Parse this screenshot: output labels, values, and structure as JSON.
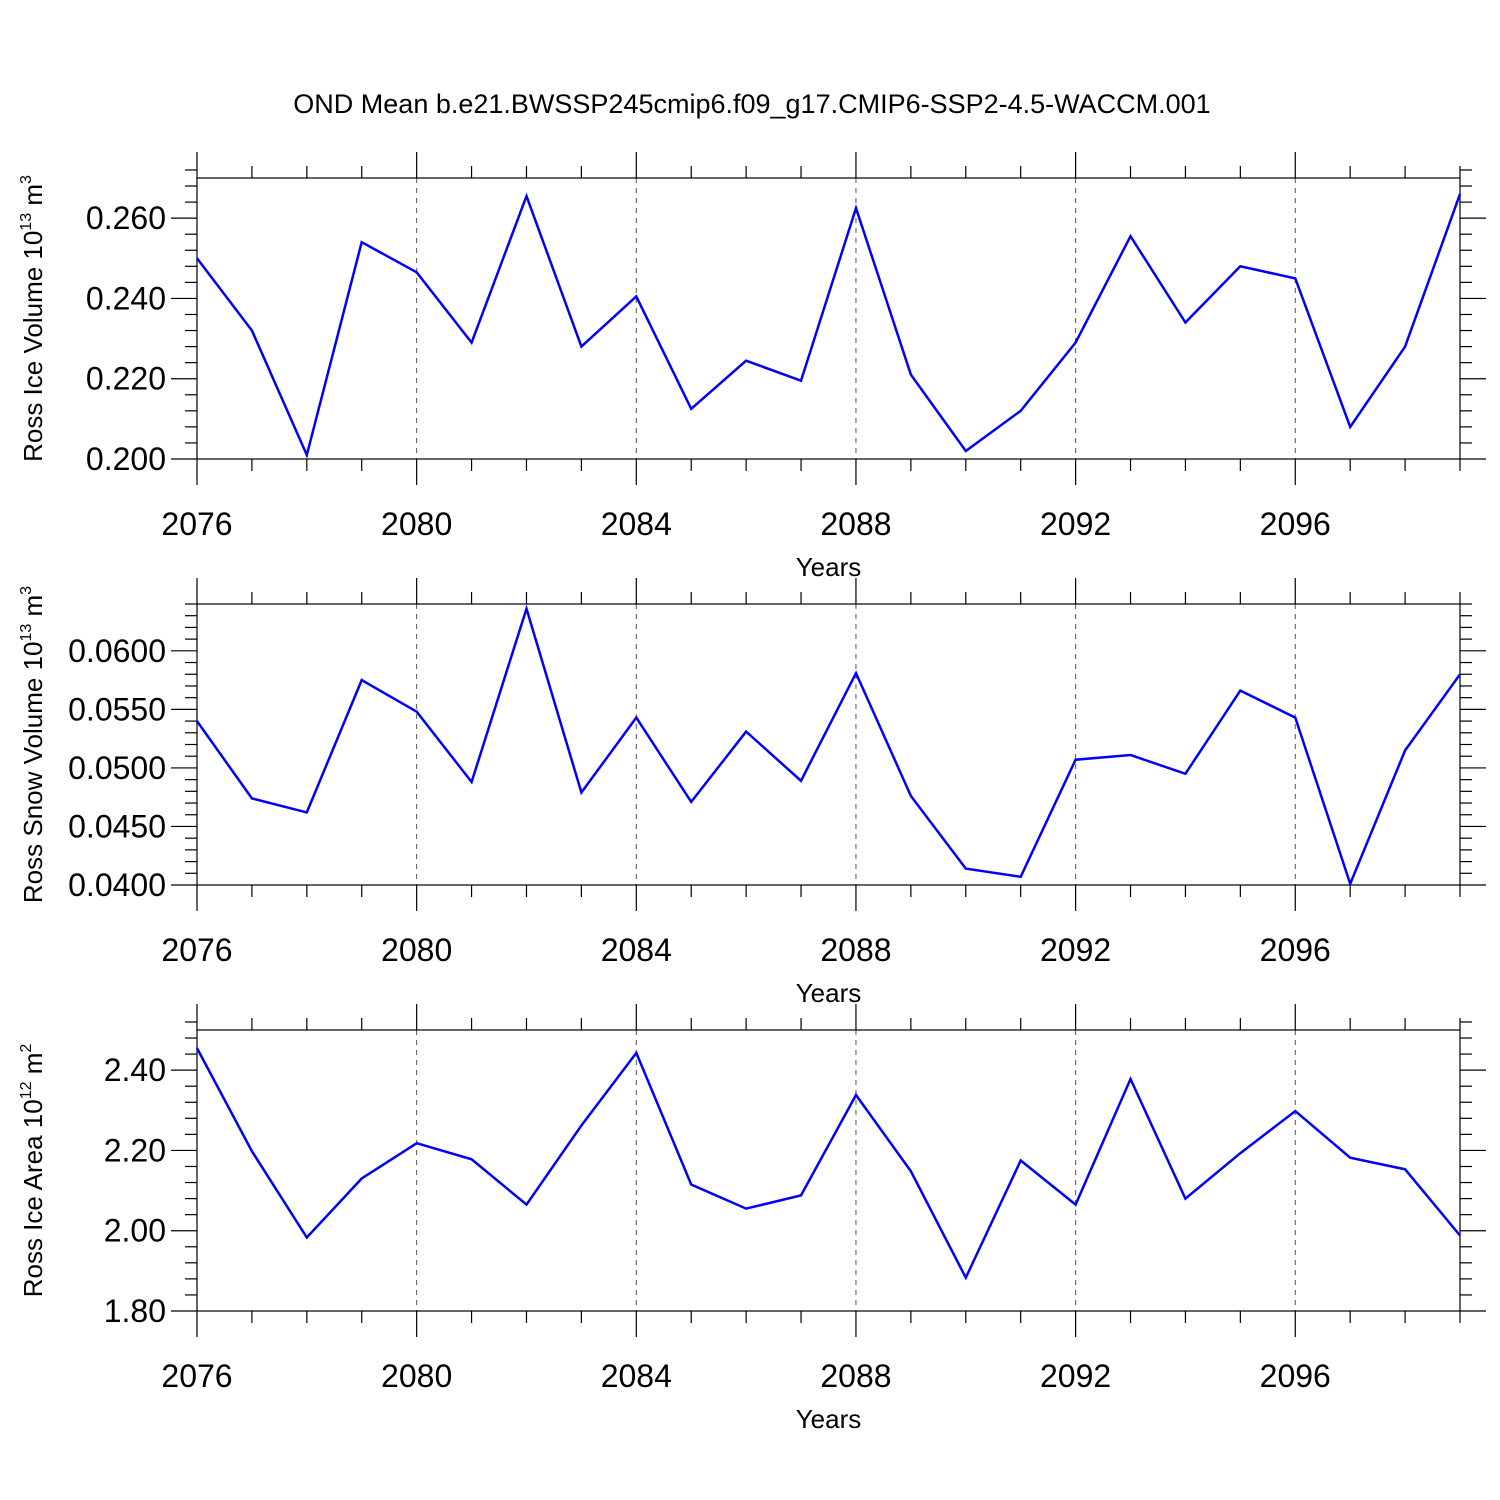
{
  "title": "OND Mean b.e21.BWSSP245cmip6.f09_g17.CMIP6-SSP2-4.5-WACCM.001",
  "chart_data": [
    {
      "type": "line",
      "xlabel": "Years",
      "ylabel": "Ross Ice Volume 10",
      "ylabel_exp": "13",
      "ylabel_unit": " m",
      "ylabel_unit_exp": "3",
      "xlim": [
        2076,
        2099
      ],
      "ylim": [
        0.2,
        0.27
      ],
      "yticks": [
        0.2,
        0.22,
        0.24,
        0.26
      ],
      "ytick_labels": [
        "0.200",
        "0.220",
        "0.240",
        "0.260"
      ],
      "xticks": [
        2076,
        2080,
        2084,
        2088,
        2092,
        2096
      ],
      "xtick_labels": [
        "2076",
        "2080",
        "2084",
        "2088",
        "2092",
        "2096"
      ],
      "grid": "vertical dashed at major x ticks",
      "series": [
        {
          "color": "#0000ff",
          "x": [
            2076,
            2077,
            2078,
            2079,
            2080,
            2081,
            2082,
            2083,
            2084,
            2085,
            2086,
            2087,
            2088,
            2089,
            2090,
            2091,
            2092,
            2093,
            2094,
            2095,
            2096,
            2097,
            2098,
            2099
          ],
          "values": [
            0.25,
            0.232,
            0.201,
            0.254,
            0.2465,
            0.229,
            0.2655,
            0.228,
            0.2405,
            0.2125,
            0.2245,
            0.2195,
            0.2625,
            0.221,
            0.202,
            0.212,
            0.229,
            0.2555,
            0.234,
            0.248,
            0.245,
            0.208,
            0.228,
            0.266
          ]
        }
      ]
    },
    {
      "type": "line",
      "xlabel": "Years",
      "ylabel": "Ross Snow Volume 10",
      "ylabel_exp": "13",
      "ylabel_unit": " m",
      "ylabel_unit_exp": "3",
      "xlim": [
        2076,
        2099
      ],
      "ylim": [
        0.04,
        0.064
      ],
      "yticks": [
        0.04,
        0.045,
        0.05,
        0.055,
        0.06
      ],
      "ytick_labels": [
        "0.0400",
        "0.0450",
        "0.0500",
        "0.0550",
        "0.0600"
      ],
      "xticks": [
        2076,
        2080,
        2084,
        2088,
        2092,
        2096
      ],
      "xtick_labels": [
        "2076",
        "2080",
        "2084",
        "2088",
        "2092",
        "2096"
      ],
      "grid": "vertical dashed at major x ticks",
      "series": [
        {
          "color": "#0000ff",
          "x": [
            2076,
            2077,
            2078,
            2079,
            2080,
            2081,
            2082,
            2083,
            2084,
            2085,
            2086,
            2087,
            2088,
            2089,
            2090,
            2091,
            2092,
            2093,
            2094,
            2095,
            2096,
            2097,
            2098,
            2099
          ],
          "values": [
            0.054,
            0.0474,
            0.0462,
            0.0575,
            0.0548,
            0.0488,
            0.0636,
            0.0479,
            0.0543,
            0.0471,
            0.0531,
            0.0489,
            0.0581,
            0.0476,
            0.0414,
            0.0407,
            0.0507,
            0.0511,
            0.0495,
            0.0566,
            0.0543,
            0.0401,
            0.0515,
            0.058
          ]
        }
      ]
    },
    {
      "type": "line",
      "xlabel": "Years",
      "ylabel": "Ross Ice Area 10",
      "ylabel_exp": "12",
      "ylabel_unit": " m",
      "ylabel_unit_exp": "2",
      "xlim": [
        2076,
        2099
      ],
      "ylim": [
        1.8,
        2.5
      ],
      "yticks": [
        1.8,
        2.0,
        2.2,
        2.4
      ],
      "ytick_labels": [
        "1.80",
        "2.00",
        "2.20",
        "2.40"
      ],
      "xticks": [
        2076,
        2080,
        2084,
        2088,
        2092,
        2096
      ],
      "xtick_labels": [
        "2076",
        "2080",
        "2084",
        "2088",
        "2092",
        "2096"
      ],
      "grid": "vertical dashed at major x ticks",
      "series": [
        {
          "color": "#0000ff",
          "x": [
            2076,
            2077,
            2078,
            2079,
            2080,
            2081,
            2082,
            2083,
            2084,
            2085,
            2086,
            2087,
            2088,
            2089,
            2090,
            2091,
            2092,
            2093,
            2094,
            2095,
            2096,
            2097,
            2098,
            2099
          ],
          "values": [
            2.455,
            2.198,
            1.983,
            2.13,
            2.218,
            2.178,
            2.065,
            2.262,
            2.443,
            2.115,
            2.055,
            2.088,
            2.338,
            2.148,
            1.883,
            2.175,
            2.065,
            2.378,
            2.08,
            2.193,
            2.298,
            2.182,
            2.153,
            1.988
          ]
        }
      ]
    }
  ]
}
